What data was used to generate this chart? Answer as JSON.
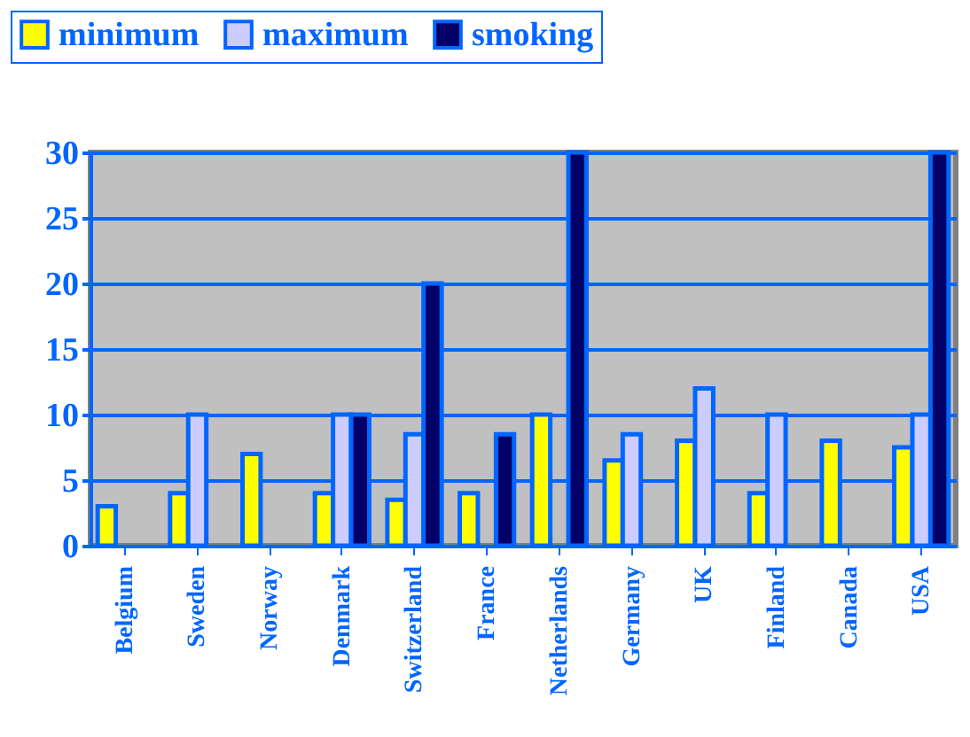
{
  "chart_data": {
    "type": "bar",
    "categories": [
      "Belgium",
      "Sweden",
      "Norway",
      "Denmark",
      "Switzerland",
      "France",
      "Netherlands",
      "Germany",
      "UK",
      "Finland",
      "Canada",
      "USA"
    ],
    "series": [
      {
        "name": "minimum",
        "color": "#ffff00",
        "values": [
          3,
          4,
          7,
          4,
          3.5,
          4,
          10,
          6.5,
          8,
          4,
          8,
          7.5
        ]
      },
      {
        "name": "maximum",
        "color": "#ccccff",
        "values": [
          null,
          10,
          null,
          10,
          8.5,
          null,
          null,
          8.5,
          12,
          10,
          null,
          10
        ]
      },
      {
        "name": "smoking",
        "color": "#000066",
        "values": [
          null,
          null,
          null,
          10,
          20,
          8.5,
          30,
          null,
          null,
          null,
          null,
          30
        ]
      }
    ],
    "ylim": [
      0,
      30
    ],
    "yticks": [
      0,
      5,
      10,
      15,
      20,
      25,
      30
    ],
    "grid": "y",
    "legend": "top left"
  }
}
